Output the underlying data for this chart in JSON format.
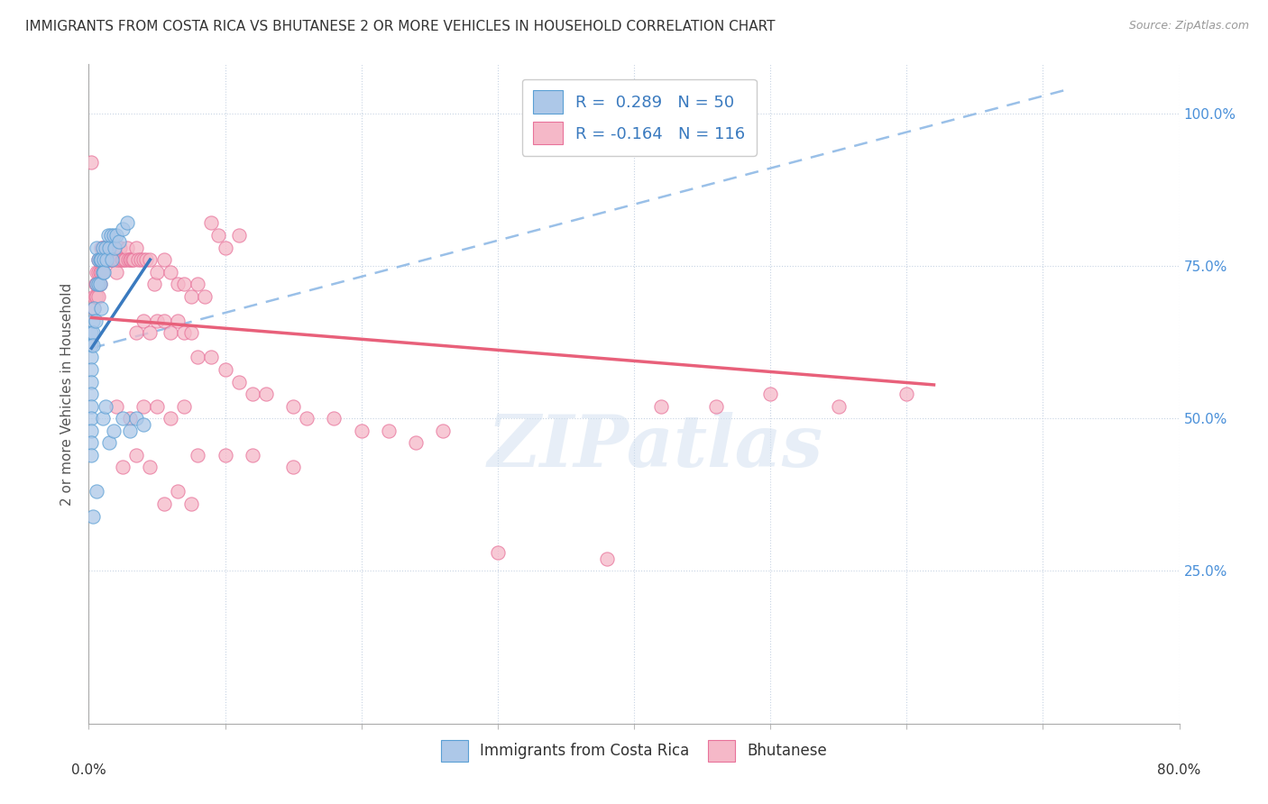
{
  "title": "IMMIGRANTS FROM COSTA RICA VS BHUTANESE 2 OR MORE VEHICLES IN HOUSEHOLD CORRELATION CHART",
  "source": "Source: ZipAtlas.com",
  "ylabel": "2 or more Vehicles in Household",
  "right_yticks": [
    "100.0%",
    "75.0%",
    "50.0%",
    "25.0%"
  ],
  "right_ytick_vals": [
    1.0,
    0.75,
    0.5,
    0.25
  ],
  "xlim": [
    0.0,
    0.8
  ],
  "ylim": [
    0.0,
    1.08
  ],
  "watermark_text": "ZIPatlas",
  "blue_fill": "#adc8e8",
  "pink_fill": "#f5b8c8",
  "blue_edge": "#5a9fd4",
  "pink_edge": "#e8729a",
  "blue_line": "#3a7abf",
  "pink_line": "#e8607a",
  "dashed_line": "#9ac0e8",
  "grid_color": "#c8d4e4",
  "right_axis_color": "#4a90d9",
  "costa_rica_points": [
    [
      0.002,
      0.64
    ],
    [
      0.002,
      0.62
    ],
    [
      0.002,
      0.6
    ],
    [
      0.002,
      0.58
    ],
    [
      0.002,
      0.56
    ],
    [
      0.002,
      0.54
    ],
    [
      0.002,
      0.52
    ],
    [
      0.002,
      0.5
    ],
    [
      0.002,
      0.48
    ],
    [
      0.002,
      0.46
    ],
    [
      0.002,
      0.44
    ],
    [
      0.003,
      0.66
    ],
    [
      0.003,
      0.64
    ],
    [
      0.003,
      0.62
    ],
    [
      0.004,
      0.68
    ],
    [
      0.005,
      0.66
    ],
    [
      0.006,
      0.78
    ],
    [
      0.006,
      0.72
    ],
    [
      0.007,
      0.76
    ],
    [
      0.007,
      0.72
    ],
    [
      0.008,
      0.76
    ],
    [
      0.008,
      0.72
    ],
    [
      0.009,
      0.76
    ],
    [
      0.009,
      0.68
    ],
    [
      0.01,
      0.78
    ],
    [
      0.01,
      0.74
    ],
    [
      0.011,
      0.76
    ],
    [
      0.011,
      0.74
    ],
    [
      0.012,
      0.78
    ],
    [
      0.013,
      0.76
    ],
    [
      0.014,
      0.8
    ],
    [
      0.015,
      0.78
    ],
    [
      0.016,
      0.8
    ],
    [
      0.017,
      0.76
    ],
    [
      0.018,
      0.8
    ],
    [
      0.019,
      0.78
    ],
    [
      0.02,
      0.8
    ],
    [
      0.022,
      0.79
    ],
    [
      0.025,
      0.81
    ],
    [
      0.028,
      0.82
    ],
    [
      0.006,
      0.38
    ],
    [
      0.01,
      0.5
    ],
    [
      0.012,
      0.52
    ],
    [
      0.015,
      0.46
    ],
    [
      0.018,
      0.48
    ],
    [
      0.025,
      0.5
    ],
    [
      0.03,
      0.48
    ],
    [
      0.035,
      0.5
    ],
    [
      0.04,
      0.49
    ],
    [
      0.003,
      0.34
    ]
  ],
  "bhutanese_points": [
    [
      0.002,
      0.92
    ],
    [
      0.004,
      0.7
    ],
    [
      0.004,
      0.68
    ],
    [
      0.005,
      0.72
    ],
    [
      0.005,
      0.7
    ],
    [
      0.006,
      0.74
    ],
    [
      0.006,
      0.72
    ],
    [
      0.006,
      0.7
    ],
    [
      0.007,
      0.76
    ],
    [
      0.007,
      0.74
    ],
    [
      0.007,
      0.72
    ],
    [
      0.007,
      0.7
    ],
    [
      0.008,
      0.76
    ],
    [
      0.008,
      0.74
    ],
    [
      0.008,
      0.72
    ],
    [
      0.009,
      0.78
    ],
    [
      0.009,
      0.76
    ],
    [
      0.009,
      0.74
    ],
    [
      0.01,
      0.78
    ],
    [
      0.01,
      0.76
    ],
    [
      0.01,
      0.74
    ],
    [
      0.011,
      0.78
    ],
    [
      0.011,
      0.76
    ],
    [
      0.012,
      0.78
    ],
    [
      0.012,
      0.76
    ],
    [
      0.013,
      0.78
    ],
    [
      0.013,
      0.76
    ],
    [
      0.014,
      0.78
    ],
    [
      0.014,
      0.76
    ],
    [
      0.015,
      0.78
    ],
    [
      0.015,
      0.76
    ],
    [
      0.016,
      0.78
    ],
    [
      0.016,
      0.76
    ],
    [
      0.017,
      0.78
    ],
    [
      0.017,
      0.76
    ],
    [
      0.018,
      0.78
    ],
    [
      0.018,
      0.76
    ],
    [
      0.019,
      0.78
    ],
    [
      0.019,
      0.76
    ],
    [
      0.02,
      0.76
    ],
    [
      0.02,
      0.74
    ],
    [
      0.021,
      0.76
    ],
    [
      0.022,
      0.78
    ],
    [
      0.022,
      0.76
    ],
    [
      0.023,
      0.78
    ],
    [
      0.024,
      0.76
    ],
    [
      0.025,
      0.76
    ],
    [
      0.026,
      0.76
    ],
    [
      0.027,
      0.76
    ],
    [
      0.028,
      0.78
    ],
    [
      0.029,
      0.76
    ],
    [
      0.03,
      0.76
    ],
    [
      0.031,
      0.76
    ],
    [
      0.032,
      0.76
    ],
    [
      0.033,
      0.76
    ],
    [
      0.035,
      0.78
    ],
    [
      0.036,
      0.76
    ],
    [
      0.038,
      0.76
    ],
    [
      0.04,
      0.76
    ],
    [
      0.042,
      0.76
    ],
    [
      0.045,
      0.76
    ],
    [
      0.048,
      0.72
    ],
    [
      0.05,
      0.74
    ],
    [
      0.055,
      0.76
    ],
    [
      0.06,
      0.74
    ],
    [
      0.065,
      0.72
    ],
    [
      0.07,
      0.72
    ],
    [
      0.075,
      0.7
    ],
    [
      0.08,
      0.72
    ],
    [
      0.085,
      0.7
    ],
    [
      0.09,
      0.82
    ],
    [
      0.095,
      0.8
    ],
    [
      0.1,
      0.78
    ],
    [
      0.11,
      0.8
    ],
    [
      0.035,
      0.64
    ],
    [
      0.04,
      0.66
    ],
    [
      0.045,
      0.64
    ],
    [
      0.05,
      0.66
    ],
    [
      0.055,
      0.66
    ],
    [
      0.06,
      0.64
    ],
    [
      0.065,
      0.66
    ],
    [
      0.07,
      0.64
    ],
    [
      0.075,
      0.64
    ],
    [
      0.08,
      0.6
    ],
    [
      0.09,
      0.6
    ],
    [
      0.1,
      0.58
    ],
    [
      0.11,
      0.56
    ],
    [
      0.12,
      0.54
    ],
    [
      0.13,
      0.54
    ],
    [
      0.15,
      0.52
    ],
    [
      0.16,
      0.5
    ],
    [
      0.18,
      0.5
    ],
    [
      0.2,
      0.48
    ],
    [
      0.22,
      0.48
    ],
    [
      0.24,
      0.46
    ],
    [
      0.26,
      0.48
    ],
    [
      0.02,
      0.52
    ],
    [
      0.03,
      0.5
    ],
    [
      0.04,
      0.52
    ],
    [
      0.05,
      0.52
    ],
    [
      0.06,
      0.5
    ],
    [
      0.07,
      0.52
    ],
    [
      0.025,
      0.42
    ],
    [
      0.035,
      0.44
    ],
    [
      0.045,
      0.42
    ],
    [
      0.08,
      0.44
    ],
    [
      0.1,
      0.44
    ],
    [
      0.12,
      0.44
    ],
    [
      0.15,
      0.42
    ],
    [
      0.055,
      0.36
    ],
    [
      0.065,
      0.38
    ],
    [
      0.075,
      0.36
    ],
    [
      0.3,
      0.28
    ],
    [
      0.38,
      0.27
    ],
    [
      0.42,
      0.52
    ],
    [
      0.46,
      0.52
    ],
    [
      0.5,
      0.54
    ],
    [
      0.55,
      0.52
    ],
    [
      0.6,
      0.54
    ]
  ],
  "cr_line_x": [
    0.002,
    0.045
  ],
  "cr_line_y": [
    0.615,
    0.76
  ],
  "bh_line_x": [
    0.002,
    0.62
  ],
  "bh_line_y": [
    0.665,
    0.555
  ],
  "dash_line_x": [
    0.002,
    0.72
  ],
  "dash_line_y": [
    0.615,
    1.04
  ]
}
